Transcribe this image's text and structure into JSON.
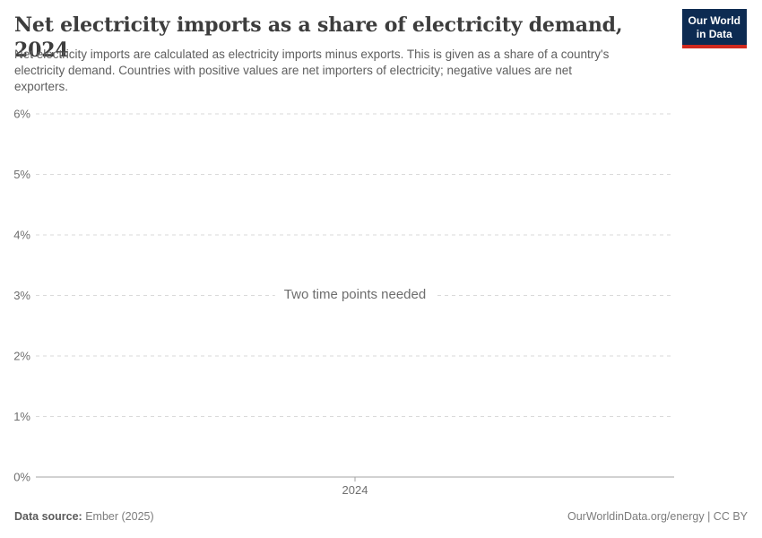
{
  "header": {
    "title": "Net electricity imports as a share of electricity demand, 2024",
    "subtitle_lines": [
      "Net electricity imports are calculated as electricity imports minus exports. This is given as a share of a country's",
      "electricity demand. Countries with positive values are net importers of electricity; negative values are net",
      "exporters."
    ],
    "logo": {
      "line1": "Our World",
      "line2": "in Data"
    }
  },
  "chart_data": {
    "type": "line",
    "title": "Net electricity imports as a share of electricity demand, 2024",
    "series": [],
    "message": "Two time points needed",
    "xticks": [
      "2024"
    ],
    "ylabel": "",
    "ylim": [
      0,
      6
    ],
    "yticks": [
      {
        "value": 0,
        "label": "0%"
      },
      {
        "value": 1,
        "label": "1%"
      },
      {
        "value": 2,
        "label": "2%"
      },
      {
        "value": 3,
        "label": "3%"
      },
      {
        "value": 4,
        "label": "4%"
      },
      {
        "value": 5,
        "label": "5%"
      },
      {
        "value": 6,
        "label": "6%"
      }
    ],
    "grid": "horizontal-dashed",
    "legend": "none"
  },
  "footer": {
    "source_label": "Data source:",
    "source_value": "Ember (2025)",
    "credit": "OurWorldinData.org/energy | CC BY"
  },
  "colors": {
    "logo_background": "#0d2b52",
    "logo_red_bar": "#d0291e",
    "title_text": "#3d3d3d",
    "subtitle_text": "#5e5e5e",
    "gridline": "#dadada",
    "axis_line": "#a3a3a3",
    "tick_label": "#6e6e6e",
    "message_text": "#6d6d6d",
    "footer_text": "#7c7c7c"
  }
}
